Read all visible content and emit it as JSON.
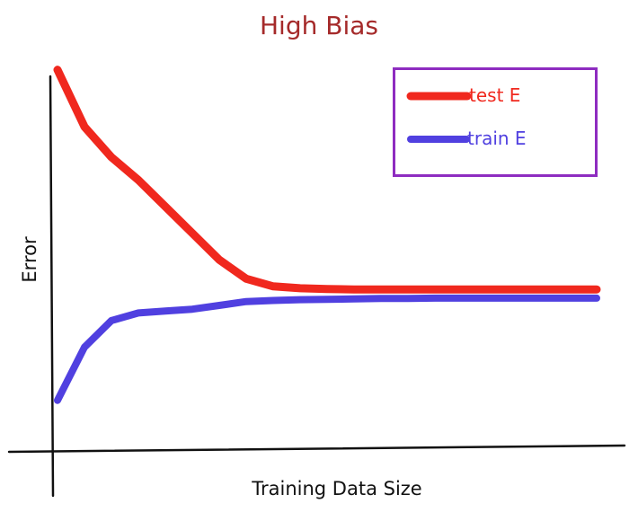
{
  "chart_data": {
    "type": "line",
    "title": "High Bias",
    "xlabel": "Training Data Size",
    "ylabel": "Error",
    "grid": false,
    "legend_position": "top-right",
    "x": [
      0,
      5,
      10,
      15,
      20,
      25,
      30,
      35,
      40,
      45,
      50,
      55,
      60,
      65,
      70,
      75,
      80,
      85,
      90,
      95,
      100
    ],
    "series": [
      {
        "name": "test E",
        "color": "#f0281e",
        "values": [
          97,
          82,
          74,
          68,
          61,
          54,
          47,
          42,
          40,
          39.5,
          39.3,
          39.2,
          39.2,
          39.2,
          39.2,
          39.2,
          39.2,
          39.2,
          39.2,
          39.2,
          39.2
        ]
      },
      {
        "name": "train E",
        "color": "#5040e0",
        "values": [
          10,
          24,
          31,
          33,
          33.5,
          34,
          35,
          36,
          36.3,
          36.5,
          36.6,
          36.7,
          36.8,
          36.8,
          36.9,
          36.9,
          36.9,
          36.9,
          36.9,
          36.9,
          36.9
        ]
      }
    ],
    "xlim": [
      0,
      100
    ],
    "ylim": [
      0,
      100
    ]
  },
  "legend": {
    "items": [
      {
        "label": "test E",
        "color": "#f0281e"
      },
      {
        "label": "train E",
        "color": "#5040e0"
      }
    ]
  },
  "colors": {
    "title": "#a52a2a",
    "legend_border": "#8e2cc0",
    "axis": "#111111"
  }
}
